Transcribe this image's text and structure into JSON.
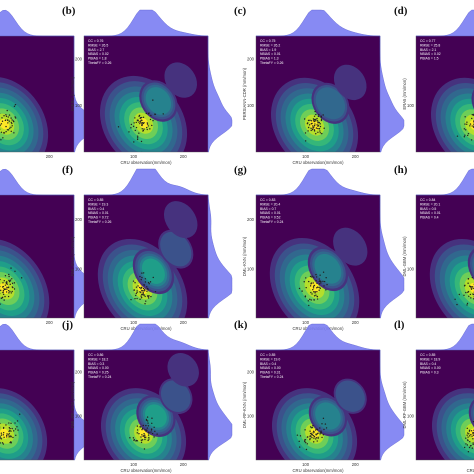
{
  "colors": {
    "background": "#ffffff",
    "plot_bg": "#440154",
    "marginal_fill": "#7b7ef2",
    "marginal_stroke": "#4c4fc9",
    "points": "#222222",
    "contour_levels": [
      "#46327e",
      "#3b528b",
      "#31688e",
      "#26828e",
      "#1f9e89",
      "#35b779",
      "#6ece58",
      "#b5de2b",
      "#fde725"
    ]
  },
  "chart_data": [
    {
      "type": "scatter",
      "label": "",
      "xlabel": "",
      "ylabel": "",
      "xticks": [
        "200"
      ],
      "yticks": [],
      "stats": [],
      "xlim": [
        0,
        250
      ],
      "ylim": [
        0,
        250
      ],
      "peaks": [
        [
          110,
          60,
          1.0
        ]
      ]
    },
    {
      "type": "scatter",
      "label": "(b)",
      "xlabel": "CRU observation(mm/mon)",
      "ylabel": "IMERG (mm/mon)",
      "xticks": [
        "100",
        "200"
      ],
      "yticks": [
        "100",
        "200"
      ],
      "stats": [
        "CC = 0.76",
        "RMSE = 26.5",
        "BIAS = 2.7",
        "NBIAS = 0.02",
        "PBIAS = 1.8",
        "ThetaFY = 0.26"
      ],
      "xlim": [
        0,
        250
      ],
      "ylim": [
        0,
        250
      ],
      "peaks": [
        [
          120,
          62,
          1.0
        ],
        [
          150,
          110,
          0.4
        ],
        [
          195,
          155,
          0.12
        ]
      ]
    },
    {
      "type": "scatter",
      "label": "(c)",
      "xlabel": "CRU observation(mm/mon)",
      "ylabel": "PERSIANN-CDR (mm/mon)",
      "xticks": [
        "100",
        "200"
      ],
      "yticks": [
        "100",
        "200"
      ],
      "stats": [
        "CC = 0.75",
        "RMSE = 26.2",
        "BIAS = 1.9",
        "NBIAS = 0.01",
        "PBIAS = 1.3",
        "ThetaFY = 0.26"
      ],
      "xlim": [
        0,
        250
      ],
      "ylim": [
        0,
        250
      ],
      "peaks": [
        [
          118,
          58,
          1.0
        ],
        [
          150,
          105,
          0.38
        ],
        [
          190,
          150,
          0.12
        ]
      ]
    },
    {
      "type": "scatter",
      "label": "(d)",
      "xlabel": "",
      "ylabel": "ERA5 (mm/mon)",
      "xticks": [],
      "yticks": [
        "100"
      ],
      "stats": [
        "CC = 0.77",
        "RMSE = 25.8",
        "BIAS = 2.1",
        "NBIAS = 0.02",
        "PBIAS = 1.5"
      ],
      "xlim": [
        0,
        250
      ],
      "ylim": [
        0,
        250
      ],
      "peaks": [
        [
          118,
          58,
          1.0
        ],
        [
          150,
          105,
          0.38
        ]
      ]
    },
    {
      "type": "scatter",
      "label": "",
      "xlabel": "",
      "ylabel": "",
      "xticks": [
        "200"
      ],
      "yticks": [],
      "stats": [],
      "xlim": [
        0,
        250
      ],
      "ylim": [
        0,
        250
      ],
      "peaks": [
        [
          110,
          60,
          1.0
        ]
      ]
    },
    {
      "type": "scatter",
      "label": "(f)",
      "xlabel": "CRU observation(mm/mon)",
      "ylabel": "DML-SVM (mm/mon)",
      "xticks": [
        "100",
        "200"
      ],
      "yticks": [
        "100",
        "200"
      ],
      "stats": [
        "CC = 0.85",
        "RMSE = 19.3",
        "BIAS = 0.4",
        "NBIAS = 0.01",
        "PBIAS = 0.72",
        "ThetaFY = 0.26"
      ],
      "xlim": [
        0,
        250
      ],
      "ylim": [
        0,
        250
      ],
      "peaks": [
        [
          118,
          60,
          1.0
        ],
        [
          140,
          95,
          0.5
        ],
        [
          185,
          140,
          0.2
        ],
        [
          195,
          200,
          0.12
        ]
      ]
    },
    {
      "type": "scatter",
      "label": "(g)",
      "xlabel": "CRU observation(mm/mon)",
      "ylabel": "DML-KNN (mm/mon)",
      "xticks": [
        "100",
        "200"
      ],
      "yticks": [
        "100",
        "200"
      ],
      "stats": [
        "CC = 0.83",
        "RMSE = 20.4",
        "BIAS = 0.7",
        "NBIAS = 0.01",
        "PBIAS = 0.52",
        "ThetaFY = 0.24"
      ],
      "xlim": [
        0,
        250
      ],
      "ylim": [
        0,
        250
      ],
      "peaks": [
        [
          118,
          62,
          1.0
        ],
        [
          145,
          100,
          0.45
        ],
        [
          190,
          145,
          0.16
        ]
      ]
    },
    {
      "type": "scatter",
      "label": "(h)",
      "xlabel": "",
      "ylabel": "DML-GBM (mm/mon)",
      "xticks": [],
      "yticks": [
        "100"
      ],
      "stats": [
        "CC = 0.84",
        "RMSE = 20.1",
        "BIAS = 0.5",
        "NBIAS = 0.01",
        "PBIAS = 0.4"
      ],
      "xlim": [
        0,
        250
      ],
      "ylim": [
        0,
        250
      ],
      "peaks": [
        [
          118,
          60,
          1.0
        ],
        [
          145,
          100,
          0.45
        ]
      ]
    },
    {
      "type": "scatter",
      "label": "",
      "xlabel": "",
      "ylabel": "",
      "xticks": [],
      "yticks": [],
      "stats": [],
      "xlim": [
        0,
        250
      ],
      "ylim": [
        0,
        250
      ],
      "peaks": [
        [
          110,
          60,
          1.0
        ]
      ]
    },
    {
      "type": "scatter",
      "label": "(j)",
      "xlabel": "CRU observation(mm/mon)",
      "ylabel": "DML-RF-SVM (mm/mon)",
      "xticks": [
        "100",
        "200"
      ],
      "yticks": [
        "100",
        "200"
      ],
      "stats": [
        "CC = 0.86",
        "RMSE = 18.2",
        "BIAS = 0.3",
        "NBIAS = 0.00",
        "PBIAS = 0.25",
        "ThetaFY = 0.24"
      ],
      "xlim": [
        0,
        250
      ],
      "ylim": [
        0,
        250
      ],
      "peaks": [
        [
          120,
          60,
          1.0
        ],
        [
          145,
          100,
          0.5
        ],
        [
          185,
          145,
          0.2
        ],
        [
          200,
          205,
          0.1
        ]
      ]
    },
    {
      "type": "scatter",
      "label": "(k)",
      "xlabel": "CRU observation(mm/mon)",
      "ylabel": "DML-RF-KNN (mm/mon)",
      "xticks": [
        "100",
        "200"
      ],
      "yticks": [
        "100",
        "200"
      ],
      "stats": [
        "CC = 0.85",
        "RMSE = 19.0",
        "BIAS = 0.4",
        "NBIAS = 0.00",
        "PBIAS = 0.31",
        "ThetaFY = 0.24"
      ],
      "xlim": [
        0,
        250
      ],
      "ylim": [
        0,
        250
      ],
      "peaks": [
        [
          118,
          60,
          1.0
        ],
        [
          145,
          100,
          0.45
        ],
        [
          190,
          145,
          0.18
        ]
      ]
    },
    {
      "type": "scatter",
      "label": "(l)",
      "xlabel": "CRU observ",
      "ylabel": "DML-RF-GBM (mm/mon)",
      "xticks": [],
      "yticks": [
        "100"
      ],
      "stats": [
        "CC = 0.85",
        "RMSE = 18.9",
        "BIAS = 0.4",
        "NBIAS = 0.00",
        "PBIAS = 0.3"
      ],
      "xlim": [
        0,
        250
      ],
      "ylim": [
        0,
        250
      ],
      "peaks": [
        [
          118,
          60,
          1.0
        ],
        [
          145,
          100,
          0.45
        ]
      ]
    }
  ]
}
